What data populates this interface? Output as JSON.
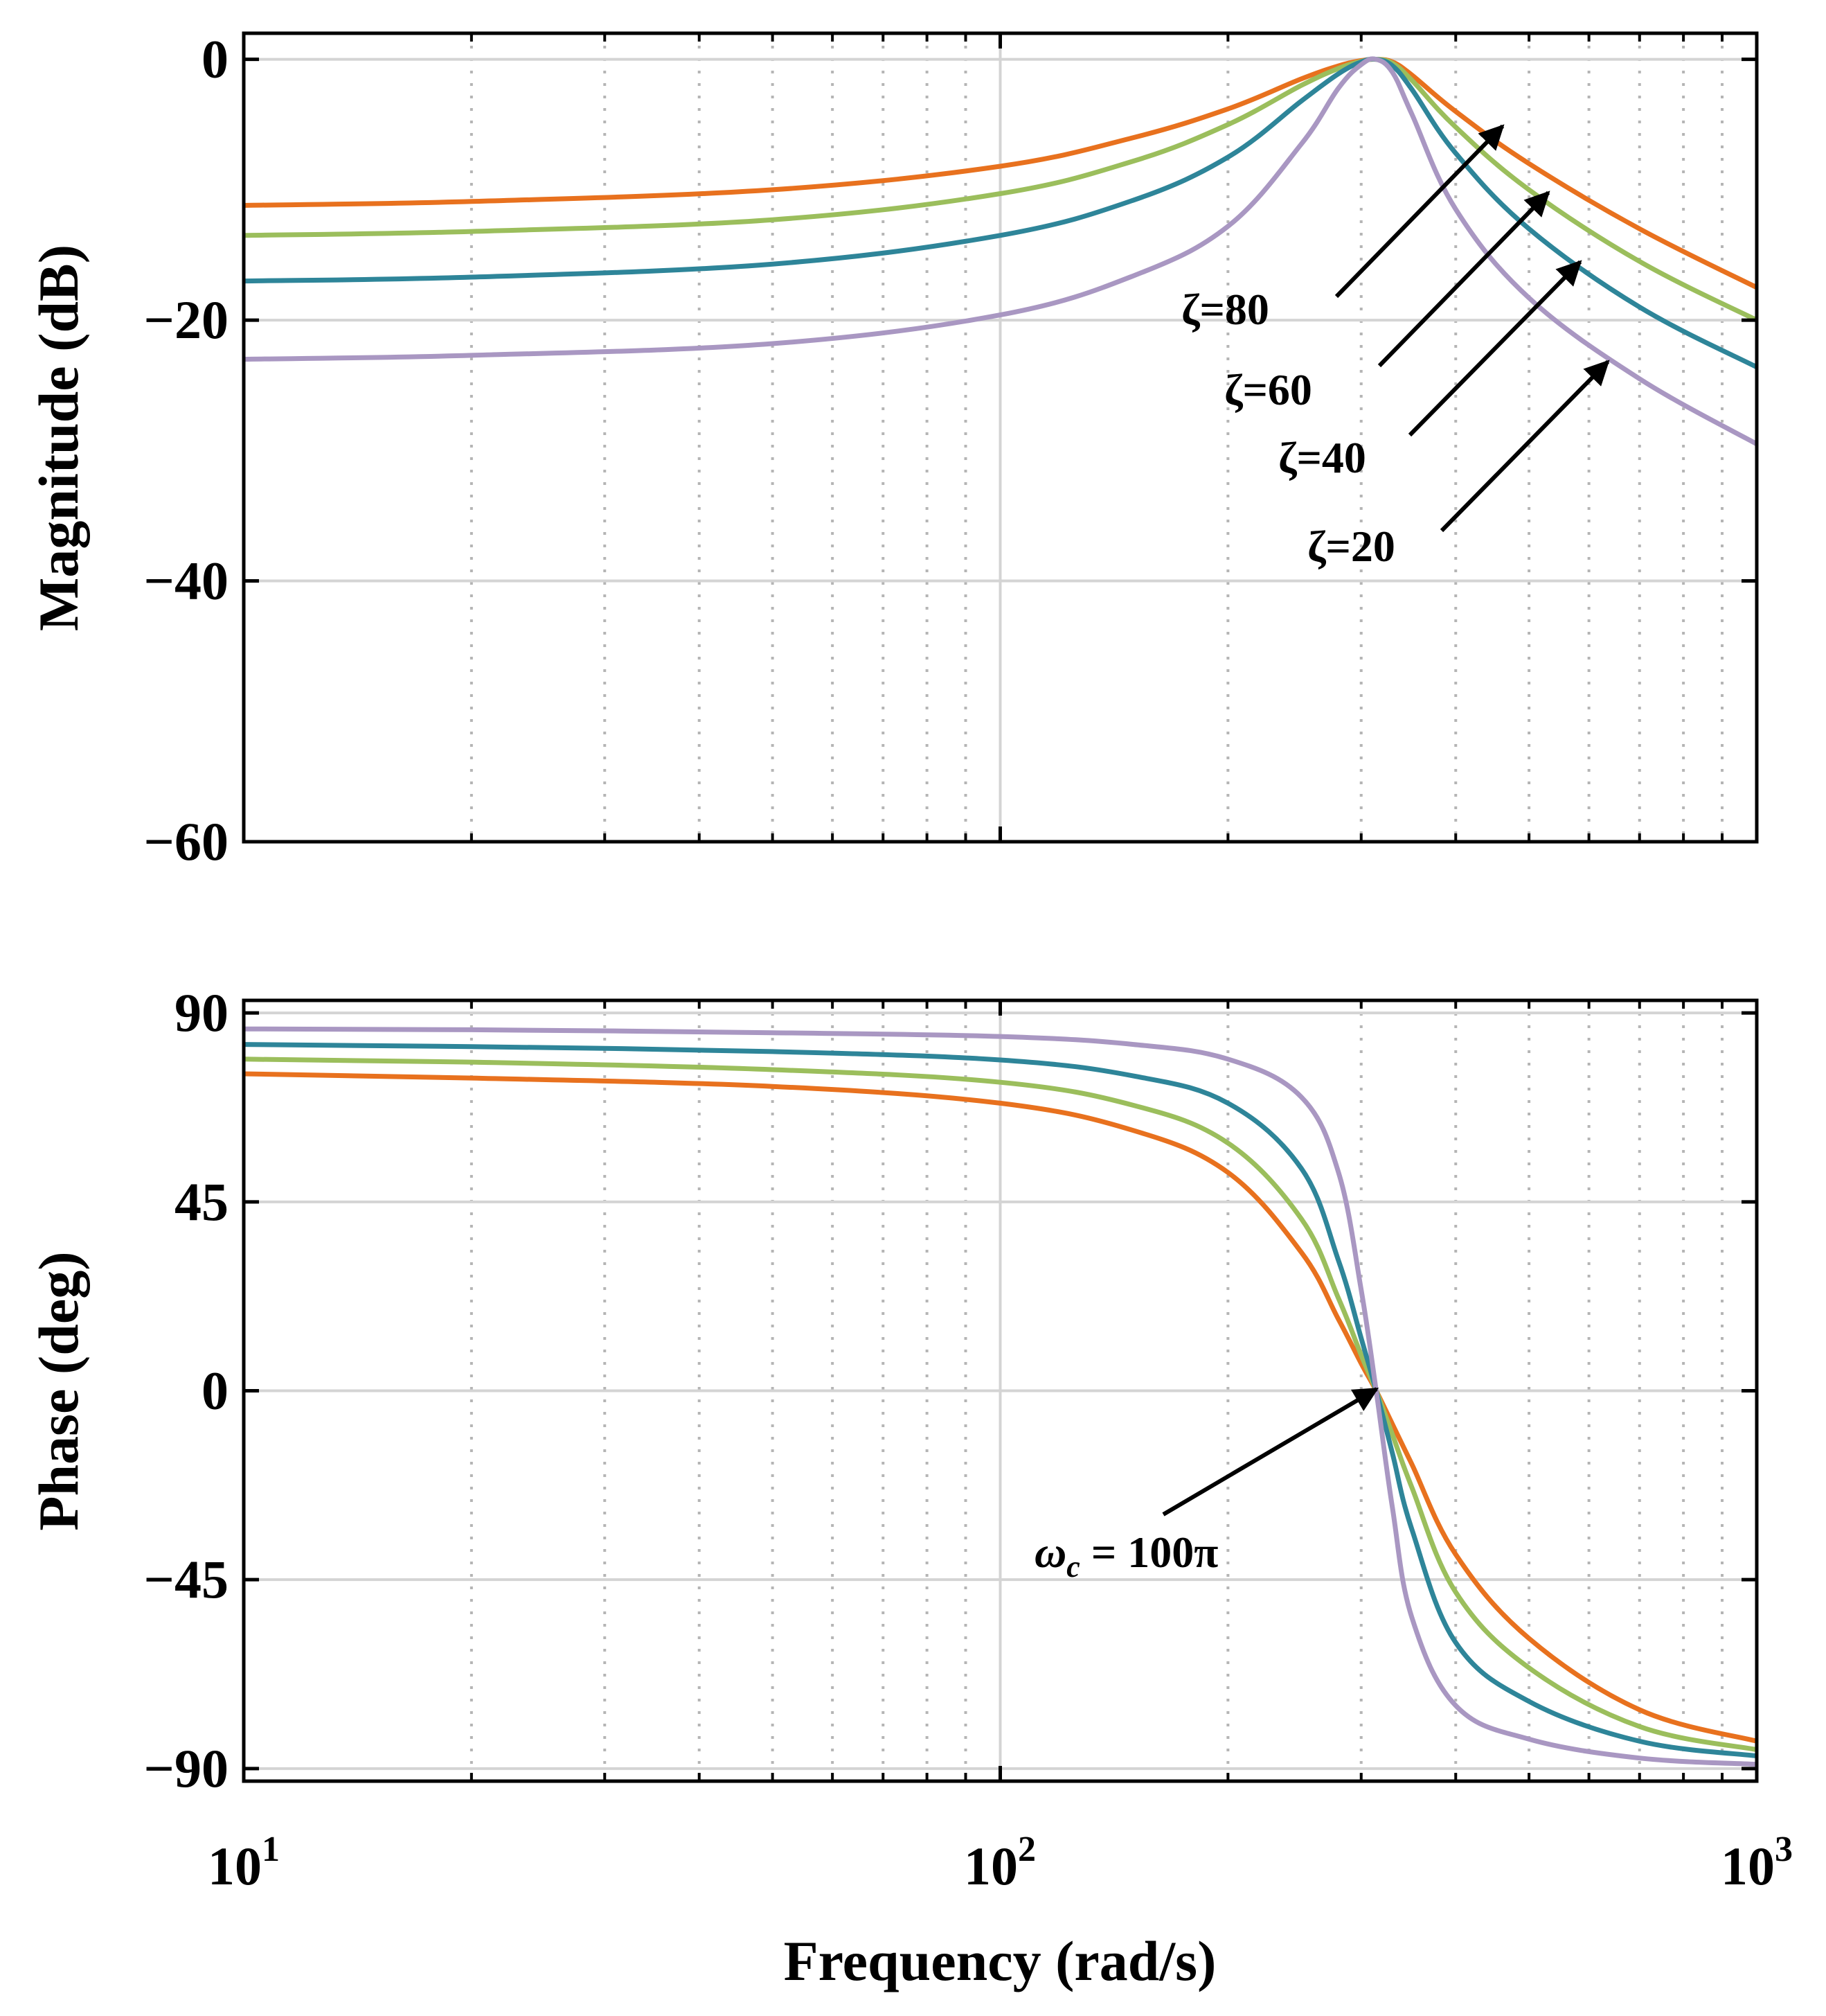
{
  "chart_data": [
    {
      "type": "line",
      "name": "magnitude",
      "xscale": "log",
      "xlim": [
        10,
        1000
      ],
      "ylim": [
        -60,
        2
      ],
      "ylabel": "Magnitude (dB)",
      "xlabel": "",
      "yticks": [
        0,
        -20,
        -40,
        -60
      ],
      "ytick_labels": [
        "0",
        "−20",
        "−40",
        "−60"
      ],
      "grid": true,
      "series": [
        {
          "name": "ζ=80",
          "color": "#E8711E",
          "x": [
            10,
            20,
            50,
            100,
            150,
            200,
            250,
            280,
            300,
            314,
            330,
            350,
            400,
            500,
            700,
            1000
          ],
          "y": [
            -11.2,
            -10.9,
            -10.0,
            -8.2,
            -6.0,
            -3.8,
            -1.5,
            -0.5,
            -0.1,
            0,
            -0.2,
            -1.2,
            -4.0,
            -8.0,
            -13.0,
            -17.5
          ]
        },
        {
          "name": "ζ=60",
          "color": "#9BBE5C",
          "x": [
            10,
            20,
            50,
            100,
            150,
            200,
            250,
            280,
            300,
            314,
            330,
            350,
            400,
            500,
            700,
            1000
          ],
          "y": [
            -13.5,
            -13.2,
            -12.3,
            -10.3,
            -7.8,
            -5.0,
            -2.0,
            -0.7,
            -0.15,
            0,
            -0.3,
            -1.6,
            -5.2,
            -10.0,
            -15.5,
            -20.0
          ]
        },
        {
          "name": "ζ=40",
          "color": "#2E8599",
          "x": [
            10,
            20,
            50,
            100,
            150,
            200,
            250,
            280,
            300,
            314,
            330,
            350,
            400,
            500,
            700,
            1000
          ],
          "y": [
            -17.0,
            -16.7,
            -15.7,
            -13.5,
            -10.8,
            -7.5,
            -3.2,
            -1.1,
            -0.2,
            0,
            -0.5,
            -2.3,
            -7.2,
            -13.0,
            -19.0,
            -23.6
          ]
        },
        {
          "name": "ζ=20",
          "color": "#A997C2",
          "x": [
            10,
            20,
            50,
            100,
            150,
            200,
            250,
            280,
            300,
            314,
            330,
            350,
            400,
            500,
            700,
            1000
          ],
          "y": [
            -23.0,
            -22.7,
            -21.8,
            -19.6,
            -16.6,
            -12.8,
            -6.5,
            -2.2,
            -0.4,
            0,
            -1.0,
            -4.2,
            -11.5,
            -18.3,
            -24.5,
            -29.5
          ]
        }
      ],
      "annotations": [
        {
          "text": "ζ=80",
          "series": "ζ=80"
        },
        {
          "text": "ζ=60",
          "series": "ζ=60"
        },
        {
          "text": "ζ=40",
          "series": "ζ=40"
        },
        {
          "text": "ζ=20",
          "series": "ζ=20"
        }
      ]
    },
    {
      "type": "line",
      "name": "phase",
      "xscale": "log",
      "xlim": [
        10,
        1000
      ],
      "ylim": [
        -93,
        93
      ],
      "ylabel": "Phase (deg)",
      "xlabel": "Frequency (rad/s)",
      "yticks": [
        90,
        45,
        0,
        -45,
        -90
      ],
      "ytick_labels": [
        "90",
        "45",
        "0",
        "−45",
        "−90"
      ],
      "grid": true,
      "series": [
        {
          "name": "ζ=80",
          "color": "#E8711E",
          "x": [
            10,
            20,
            50,
            100,
            150,
            200,
            250,
            280,
            300,
            314,
            330,
            350,
            400,
            500,
            700,
            1000
          ],
          "y": [
            75.5,
            74.5,
            72.5,
            68.5,
            62.0,
            52.0,
            33.0,
            17.0,
            6.5,
            0,
            -8.0,
            -17.5,
            -39.0,
            -59.0,
            -76.0,
            -83.5
          ]
        },
        {
          "name": "ζ=60",
          "color": "#9BBE5C",
          "x": [
            10,
            20,
            50,
            100,
            150,
            200,
            250,
            280,
            300,
            314,
            330,
            350,
            400,
            500,
            700,
            1000
          ],
          "y": [
            79.0,
            78.3,
            76.5,
            73.5,
            68.0,
            59.0,
            41.0,
            22.0,
            8.5,
            0,
            -10.5,
            -23.0,
            -48.0,
            -66.0,
            -80.0,
            -85.5
          ]
        },
        {
          "name": "ζ=40",
          "color": "#2E8599",
          "x": [
            10,
            20,
            50,
            100,
            150,
            200,
            250,
            280,
            300,
            314,
            330,
            350,
            400,
            500,
            700,
            1000
          ],
          "y": [
            82.5,
            82.0,
            80.8,
            78.8,
            75.0,
            68.5,
            53.0,
            31.0,
            12.5,
            0,
            -15.0,
            -33.0,
            -60.0,
            -74.0,
            -83.5,
            -87.0
          ]
        },
        {
          "name": "ζ=20",
          "color": "#A997C2",
          "x": [
            10,
            20,
            50,
            100,
            150,
            200,
            250,
            280,
            300,
            314,
            330,
            350,
            400,
            500,
            700,
            1000
          ],
          "y": [
            86.2,
            86.0,
            85.3,
            84.4,
            82.5,
            79.0,
            70.0,
            52.0,
            24.0,
            0,
            -28.0,
            -54.0,
            -75.0,
            -83.0,
            -87.5,
            -89.0
          ]
        }
      ],
      "annotations": [
        {
          "text": "ω",
          "subscript": "c",
          "suffix": " = 100π"
        }
      ]
    }
  ],
  "x_tick_labels": [
    {
      "base": "10",
      "exp": "1"
    },
    {
      "base": "10",
      "exp": "2"
    },
    {
      "base": "10",
      "exp": "3"
    }
  ]
}
